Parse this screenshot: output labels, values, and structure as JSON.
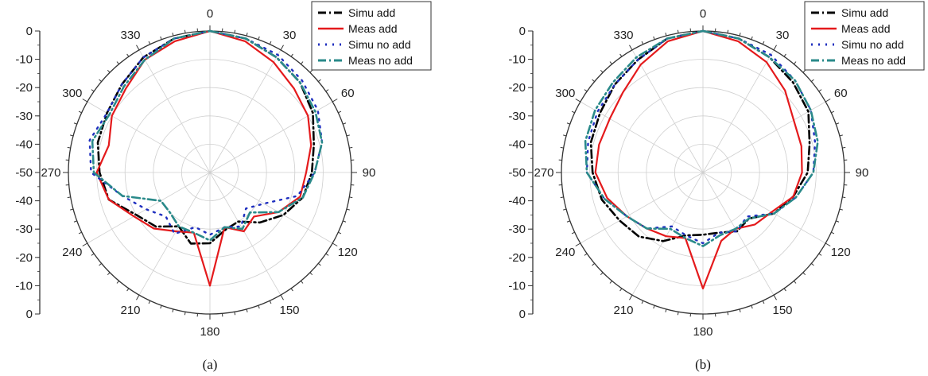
{
  "chart_data": [
    {
      "type": "polar-line",
      "caption": "(a)",
      "angular_ticks": [
        "0",
        "30",
        "60",
        "90",
        "120",
        "150",
        "180",
        "210",
        "240",
        "270",
        "300",
        "330"
      ],
      "radial_ticks_upper": [
        "0",
        "-10",
        "-20",
        "-30",
        "-40",
        "-50"
      ],
      "radial_ticks_lower": [
        "-40",
        "-30",
        "-20",
        "-10",
        "0"
      ],
      "rlim": [
        -50,
        0
      ],
      "grid": true,
      "legend_position": "top-right",
      "series": [
        {
          "name": "Simu add",
          "color": "#000000",
          "style": "dash-dot",
          "angles": [
            0,
            15,
            30,
            45,
            60,
            75,
            90,
            105,
            120,
            135,
            150,
            165,
            180,
            195,
            210,
            225,
            240,
            255,
            270,
            285,
            300,
            315,
            330,
            345
          ],
          "values": [
            0,
            -1,
            -3,
            -5,
            -8,
            -12,
            -14,
            -16,
            -20,
            -25,
            -30,
            -29,
            -25,
            -24,
            -28,
            -23,
            -20,
            -13,
            -11,
            -9,
            -8,
            -6,
            -3,
            -1
          ]
        },
        {
          "name": "Meas add",
          "color": "#e41a1c",
          "style": "solid",
          "angles": [
            0,
            15,
            30,
            45,
            60,
            75,
            90,
            105,
            120,
            135,
            150,
            165,
            180,
            195,
            210,
            225,
            240,
            255,
            270,
            285,
            300,
            315,
            330,
            345
          ],
          "values": [
            0,
            -2,
            -5,
            -8,
            -10,
            -13,
            -16,
            -17,
            -22,
            -28,
            -26,
            -30,
            -10,
            -28,
            -26,
            -22,
            -19,
            -13,
            -10,
            -13,
            -10,
            -8,
            -4,
            -2
          ]
        },
        {
          "name": "Simu no add",
          "color": "#1f2fbf",
          "style": "dotted",
          "angles": [
            0,
            15,
            30,
            45,
            60,
            75,
            90,
            105,
            120,
            135,
            150,
            165,
            180,
            195,
            210,
            225,
            240,
            255,
            270,
            285,
            300,
            315,
            330,
            345
          ],
          "values": [
            0,
            -1,
            -2,
            -4,
            -6,
            -9,
            -13,
            -18,
            -28,
            -32,
            -28,
            -30,
            -28,
            -30,
            -25,
            -28,
            -24,
            -18,
            -8,
            -6,
            -8,
            -6,
            -3,
            -1
          ]
        },
        {
          "name": "Meas no add",
          "color": "#2a8a8a",
          "style": "dash-dot",
          "angles": [
            0,
            15,
            30,
            45,
            60,
            75,
            90,
            105,
            120,
            135,
            150,
            165,
            180,
            195,
            210,
            225,
            240,
            255,
            270,
            285,
            300,
            315,
            330,
            345
          ],
          "values": [
            0,
            -1,
            -3,
            -5,
            -7,
            -9,
            -13,
            -16,
            -22,
            -30,
            -27,
            -30,
            -26,
            -28,
            -28,
            -30,
            -30,
            -18,
            -9,
            -7,
            -9,
            -7,
            -4,
            -1
          ]
        }
      ]
    },
    {
      "type": "polar-line",
      "caption": "(b)",
      "angular_ticks": [
        "0",
        "30",
        "60",
        "90",
        "120",
        "150",
        "180",
        "210",
        "240",
        "270",
        "300",
        "330"
      ],
      "radial_ticks_upper": [
        "0",
        "-10",
        "-20",
        "-30",
        "-40",
        "-50"
      ],
      "radial_ticks_lower": [
        "-40",
        "-30",
        "-20",
        "-10",
        "0"
      ],
      "rlim": [
        -50,
        0
      ],
      "grid": true,
      "legend_position": "top-right",
      "series": [
        {
          "name": "Simu add",
          "color": "#000000",
          "style": "dash-dot",
          "angles": [
            0,
            15,
            30,
            45,
            60,
            75,
            90,
            105,
            120,
            135,
            150,
            165,
            180,
            195,
            210,
            225,
            240,
            255,
            270,
            285,
            300,
            315,
            330,
            345
          ],
          "values": [
            0,
            -1,
            -3,
            -5,
            -7,
            -11,
            -13,
            -17,
            -21,
            -27,
            -26,
            -28,
            -28,
            -27,
            -22,
            -18,
            -16,
            -13,
            -11,
            -9,
            -8,
            -6,
            -4,
            -1
          ]
        },
        {
          "name": "Meas add",
          "color": "#e41a1c",
          "style": "solid",
          "angles": [
            0,
            15,
            30,
            45,
            60,
            75,
            90,
            105,
            120,
            135,
            150,
            165,
            180,
            195,
            210,
            225,
            240,
            255,
            270,
            285,
            300,
            315,
            330,
            345
          ],
          "values": [
            0,
            -2,
            -5,
            -9,
            -13,
            -14,
            -15,
            -17,
            -22,
            -24,
            -27,
            -25,
            -9,
            -26,
            -24,
            -22,
            -19,
            -15,
            -12,
            -12,
            -12,
            -10,
            -6,
            -2
          ]
        },
        {
          "name": "Simu no add",
          "color": "#1f2fbf",
          "style": "dotted",
          "angles": [
            0,
            15,
            30,
            45,
            60,
            75,
            90,
            105,
            120,
            135,
            150,
            165,
            180,
            195,
            210,
            225,
            240,
            255,
            270,
            285,
            300,
            315,
            330,
            345
          ],
          "values": [
            0,
            -1,
            -2,
            -4,
            -6,
            -9,
            -11,
            -16,
            -21,
            -28,
            -26,
            -28,
            -25,
            -27,
            -28,
            -22,
            -19,
            -14,
            -9,
            -8,
            -7,
            -6,
            -4,
            -1
          ]
        },
        {
          "name": "Meas no add",
          "color": "#2a8a8a",
          "style": "dash-dot",
          "angles": [
            0,
            15,
            30,
            45,
            60,
            75,
            90,
            105,
            120,
            135,
            150,
            165,
            180,
            195,
            210,
            225,
            240,
            255,
            270,
            285,
            300,
            315,
            330,
            345
          ],
          "values": [
            0,
            -1,
            -3,
            -4,
            -6,
            -8,
            -11,
            -16,
            -21,
            -27,
            -27,
            -27,
            -24,
            -26,
            -27,
            -22,
            -19,
            -14,
            -9,
            -7,
            -6,
            -5,
            -3,
            -1
          ]
        }
      ]
    }
  ]
}
